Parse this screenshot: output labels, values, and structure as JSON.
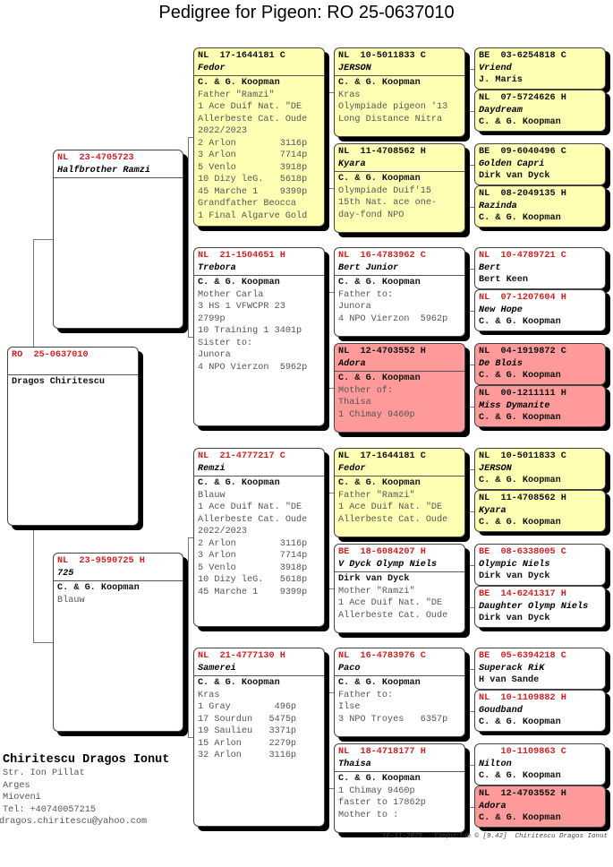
{
  "title": "Pedigree for Pigeon: RO  25-0637010",
  "colors": {
    "yellow": "#FFFFB3",
    "pink": "#FF9A9A",
    "white": "#FFFFFF",
    "red_ring": "#CC2222",
    "black_ring": "#111111"
  },
  "pigeons": [
    {
      "ring": "RO  25-0637010",
      "name": "",
      "breeder": "Dragos Chiritescu",
      "lines": [],
      "bg": "white",
      "ring_color": "red_ring"
    },
    {
      "ring": "NL  23-4705723",
      "name": "Halfbrother Ramzi",
      "breeder": "",
      "lines": [],
      "bg": "white",
      "ring_color": "red_ring"
    },
    {
      "ring": "NL  23-9590725 H",
      "name": "725",
      "breeder": "C. & G. Koopman",
      "lines": [
        "Blauw"
      ],
      "bg": "white",
      "ring_color": "red_ring"
    },
    {
      "ring": "NL  17-1644181 C",
      "name": "Fedor",
      "breeder": "C. & G. Koopman",
      "lines": [
        "Father \"Ramzi\"",
        "1 Ace Duif Nat. \"DE",
        "Allerbeste Cat. Oude",
        "2022/2023",
        "2 Arlon        3116p",
        "3 Arlon        7714p",
        "5 Venlo        3918p",
        "10 Dizy leG.   5618p",
        "45 Marche 1    9399p",
        "Grandfather Beocca",
        "1 Final Algarve Gold"
      ],
      "bg": "yellow",
      "ring_color": "black_ring"
    },
    {
      "ring": "NL  21-1504651 H",
      "name": "Trebora",
      "breeder": "C. & G. Koopman",
      "lines": [
        "Mother Carla",
        "3 HS 1 VFWCPR 23",
        "2799p",
        "10 Training 1 3401p",
        "Sister to:",
        "Junora",
        "4 NPO Vierzon  5962p"
      ],
      "bg": "white",
      "ring_color": "red_ring"
    },
    {
      "ring": "NL  21-4777217 C",
      "name": "Remzi",
      "breeder": "C. & G. Koopman",
      "lines": [
        "Blauw",
        "1 Ace Duif Nat. \"DE",
        "Allerbeste Cat. Oude",
        "2022/2023",
        "2 Arlon        3116p",
        "3 Arlon        7714p",
        "5 Venlo        3918p",
        "10 Dizy leG.   5618p",
        "45 Marche 1    9399p"
      ],
      "bg": "white",
      "ring_color": "red_ring"
    },
    {
      "ring": "NL  21-4777130 H",
      "name": "Samerei",
      "breeder": "C. & G. Koopman",
      "lines": [
        "Kras",
        "1 Gray        496p",
        "17 Sourdun   5475p",
        "19 Saulieu   3371p",
        "15 Arlon     2279p",
        "32 Arlon     3116p"
      ],
      "bg": "white",
      "ring_color": "red_ring"
    },
    {
      "ring": "NL  10-5011833 C",
      "name": "JERSON",
      "breeder": "C. & G. Koopman",
      "lines": [
        "Kras",
        "Olympiade pigeon '13",
        "Long Distance Nitra"
      ],
      "bg": "yellow",
      "ring_color": "black_ring"
    },
    {
      "ring": "NL  11-4708562 H",
      "name": "Kyara",
      "breeder": "C. & G. Koopman",
      "lines": [
        "Olympiade Duif'15",
        "15th Nat. ace one-",
        "day-fond NPO"
      ],
      "bg": "yellow",
      "ring_color": "black_ring"
    },
    {
      "ring": "NL  16-4783962 C",
      "name": "Bert Junior",
      "breeder": "C. & G. Koopman",
      "lines": [
        "Father to:",
        "Junora",
        "4 NPO Vierzon  5962p"
      ],
      "bg": "white",
      "ring_color": "red_ring"
    },
    {
      "ring": "NL  12-4703552 H",
      "name": "Adora",
      "breeder": "C. & G. Koopman",
      "lines": [
        "Mother of:",
        "Thaisa",
        "1 Chimay 9460p"
      ],
      "bg": "pink",
      "ring_color": "black_ring"
    },
    {
      "ring": "NL  17-1644181 C",
      "name": "Fedor",
      "breeder": "C. & G. Koopman",
      "lines": [
        "Father \"Ramzi\"",
        "1 Ace Duif Nat. \"DE",
        "Allerbeste Cat. Oude"
      ],
      "bg": "yellow",
      "ring_color": "black_ring"
    },
    {
      "ring": "BE  18-6084207 H",
      "name": "V Dyck Olymp Niels",
      "breeder": "Dirk van Dyck",
      "lines": [
        "Mother \"Ramzi\"",
        "1 Ace Duif Nat. \"DE",
        "Allerbeste Cat. Oude"
      ],
      "bg": "white",
      "ring_color": "red_ring"
    },
    {
      "ring": "NL  16-4783976 C",
      "name": "Paco",
      "breeder": "C. & G. Koopman",
      "lines": [
        "Father to:",
        "Ilse",
        "3 NPO Troyes   6357p"
      ],
      "bg": "white",
      "ring_color": "red_ring"
    },
    {
      "ring": "NL  18-4718177 H",
      "name": "Thaisa",
      "breeder": "C. & G. Koopman",
      "lines": [
        "1 Chimay 9460p",
        "faster to 17862p",
        "Mother to :"
      ],
      "bg": "white",
      "ring_color": "red_ring"
    },
    {
      "ring": "BE  03-6254818 C",
      "name": "Vriend",
      "breeder": "J. Maris",
      "lines": [],
      "bg": "yellow",
      "ring_color": "black_ring"
    },
    {
      "ring": "NL  07-5724626 H",
      "name": "Daydream",
      "breeder": "C. & G. Koopman",
      "lines": [],
      "bg": "yellow",
      "ring_color": "black_ring"
    },
    {
      "ring": "BE  09-6040496 C",
      "name": "Golden Capri",
      "breeder": "Dirk van Dyck",
      "lines": [],
      "bg": "yellow",
      "ring_color": "black_ring"
    },
    {
      "ring": "NL  08-2049135 H",
      "name": "Razinda",
      "breeder": "C. & G. Koopman",
      "lines": [],
      "bg": "yellow",
      "ring_color": "black_ring"
    },
    {
      "ring": "NL  10-4789721 C",
      "name": "Bert",
      "breeder": "Bert Keen",
      "lines": [],
      "bg": "white",
      "ring_color": "red_ring"
    },
    {
      "ring": "NL  07-1207604 H",
      "name": "New Hope",
      "breeder": "C. & G. Koopman",
      "lines": [],
      "bg": "white",
      "ring_color": "red_ring"
    },
    {
      "ring": "NL  04-1919872 C",
      "name": "De Blois",
      "breeder": "C. & G. Koopman",
      "lines": [],
      "bg": "pink",
      "ring_color": "black_ring"
    },
    {
      "ring": "NL  00-1211111 H",
      "name": "Miss Dymanite",
      "breeder": "C. & G. Koopman",
      "lines": [],
      "bg": "pink",
      "ring_color": "black_ring"
    },
    {
      "ring": "NL  10-5011833 C",
      "name": "JERSON",
      "breeder": "C. & G. Koopman",
      "lines": [],
      "bg": "yellow",
      "ring_color": "black_ring"
    },
    {
      "ring": "NL  11-4708562 H",
      "name": "Kyara",
      "breeder": "C. & G. Koopman",
      "lines": [],
      "bg": "yellow",
      "ring_color": "black_ring"
    },
    {
      "ring": "BE  08-6338005 C",
      "name": "Olympic Niels",
      "breeder": "Dirk van Dyck",
      "lines": [],
      "bg": "white",
      "ring_color": "red_ring"
    },
    {
      "ring": "BE  14-6241317 H",
      "name": "Daughter Olymp Niels",
      "breeder": "Dirk van Dyck",
      "lines": [],
      "bg": "white",
      "ring_color": "red_ring"
    },
    {
      "ring": "BE  05-6394218 C",
      "name": "Superack RiK",
      "breeder": "H van Sande",
      "lines": [],
      "bg": "white",
      "ring_color": "red_ring"
    },
    {
      "ring": "NL  10-1109882 H",
      "name": "Goudband",
      "breeder": "C. & G. Koopman",
      "lines": [],
      "bg": "white",
      "ring_color": "red_ring"
    },
    {
      "ring": "    10-1109863 C",
      "name": "Nilton",
      "breeder": "C. & G. Koopman",
      "lines": [],
      "bg": "white",
      "ring_color": "red_ring"
    },
    {
      "ring": "NL  12-4703552 H",
      "name": "Adora",
      "breeder": "C. & G. Koopman",
      "lines": [],
      "bg": "pink",
      "ring_color": "black_ring"
    }
  ],
  "owner": {
    "name": "Chiritescu Dragos Ionut",
    "street": "Str. Ion Pillat",
    "region": "Arges",
    "city": "Mioveni",
    "phone": "Tel: +40740057215",
    "email": "dragos.chiritescu@yahoo.com"
  },
  "footer": "16-11-2025   Compuclub © [9.42]  Chiritescu Dragos Ionut"
}
